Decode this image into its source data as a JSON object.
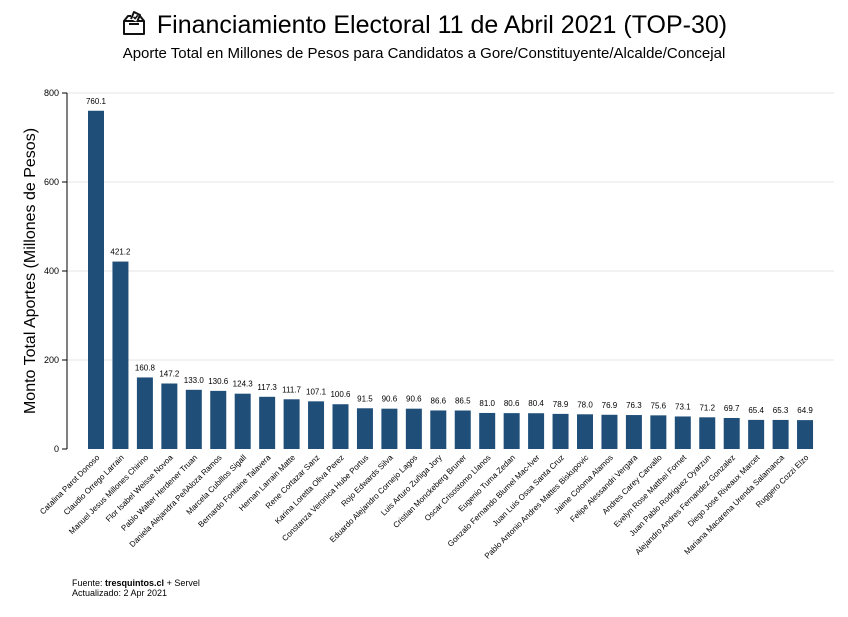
{
  "header": {
    "title": "Financiamiento Electoral 11 de Abril 2021 (TOP-30)",
    "subtitle": "Aporte Total en Millones de Pesos para Candidatos a Gore/Constituyente/Alcalde/Concejal",
    "title_icon": "ballot-box-icon"
  },
  "footer": {
    "source_label": "Fuente:",
    "source_site": "tresquintos.cl",
    "source_rest": "+ Servel",
    "updated": "Actualizado: 2 Apr 2021"
  },
  "chart_data": {
    "type": "bar",
    "title": "Financiamiento Electoral 11 de Abril 2021 (TOP-30)",
    "subtitle": "Aporte Total en Millones de Pesos para Candidatos a Gore/Constituyente/Alcalde/Concejal",
    "xlabel": "",
    "ylabel": "Monto Total Aportes (Millones de Pesos)",
    "ylim": [
      0,
      800
    ],
    "yticks": [
      0,
      200,
      400,
      600,
      800
    ],
    "grid": true,
    "bar_color": "#1f4e79",
    "categories": [
      "Catalina Parot Donoso",
      "Claudio Orrego Larrain",
      "Manuel Jesus Millones Chirino",
      "Flor Isabel Weisse Novoa",
      "Pablo Walter Herdener Truan",
      "Daniela Alejandra PeñAloza Ramos",
      "Marcela Cubillos Sigall",
      "Bernardo Fontaine Talavera",
      "Hernan Larrain Matte",
      "Rene Cortazar Sanz",
      "Karina Loretta Oliva Perez",
      "Constanza Veronica Hube Portus",
      "Rojo Edwards Silva",
      "Eduardo Alejandro Cornejo Lagos",
      "Luis Arturo Zuñiga Jory",
      "Cristian Monckeberg Bruner",
      "Oscar Crisostomo Llanos",
      "Eugenio Tuma Zedan",
      "Gonzalo Fernando Blumel Mac-Iver",
      "Juan Luis Ossa Santa Cruz",
      "Pablo Antonio Andres Mattes Biskupovic",
      "Jaime Coloma Alamos",
      "Felipe Alessandri Vergara",
      "Andres Carey Carvallo",
      "Evelyn Rose Matthei Fornet",
      "Juan Pablo Rodriguez Oyarzun",
      "Alejandro Andres Fernandez Gonzalez",
      "Diego Jose Riveaux Marcet",
      "Mariana Macarena Urenda Salamanca",
      "Ruggero Cozzi Elzo"
    ],
    "values": [
      760.1,
      421.2,
      160.8,
      147.2,
      133.0,
      130.6,
      124.3,
      117.3,
      111.7,
      107.1,
      100.6,
      91.5,
      90.6,
      90.6,
      86.6,
      86.5,
      81.0,
      80.6,
      80.4,
      78.9,
      78.0,
      76.9,
      76.3,
      75.6,
      73.1,
      71.2,
      69.7,
      65.4,
      65.3,
      64.9
    ],
    "value_labels": [
      "760.1",
      "421.2",
      "160.8",
      "147.2",
      "133.0",
      "130.6",
      "124.3",
      "117.3",
      "111.7",
      "107.1",
      "100.6",
      "91.5",
      "90.6",
      "90.6",
      "86.6",
      "86.5",
      "81.0",
      "80.6",
      "80.4",
      "78.9",
      "78.0",
      "76.9",
      "76.3",
      "75.6",
      "73.1",
      "71.2",
      "69.7",
      "65.4",
      "65.3",
      "64.9"
    ]
  }
}
